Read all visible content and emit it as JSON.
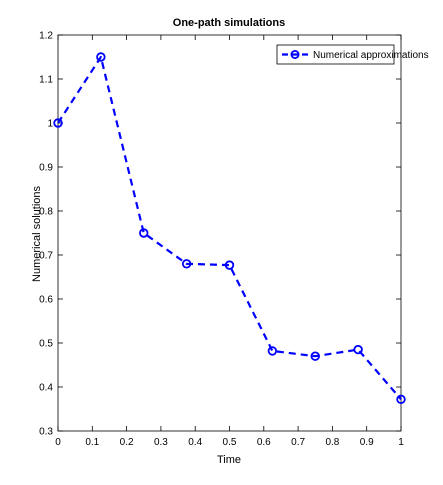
{
  "chart_data": {
    "type": "line",
    "title": "One-path simulations",
    "xlabel": "Time",
    "ylabel": "Numerical solutions",
    "xlim": [
      0,
      1
    ],
    "ylim": [
      0.3,
      1.2
    ],
    "grid": false,
    "legend_position": "top-right",
    "x_ticks": [
      0,
      0.1,
      0.2,
      0.3,
      0.4,
      0.5,
      0.6,
      0.7,
      0.8,
      0.9,
      1
    ],
    "x_tick_labels": [
      "0",
      "0.1",
      "0.2",
      "0.3",
      "0.4",
      "0.5",
      "0.6",
      "0.7",
      "0.8",
      "0.9",
      "1"
    ],
    "y_ticks": [
      0.3,
      0.4,
      0.5,
      0.6,
      0.7,
      0.8,
      0.9,
      1.0,
      1.1,
      1.2
    ],
    "y_tick_labels": [
      "0.3",
      "0.4",
      "0.5",
      "0.6",
      "0.7",
      "0.8",
      "0.9",
      "1",
      "1.1",
      "1.2"
    ],
    "series": [
      {
        "name": "Numerical approximations",
        "color": "#0000ff",
        "line_style": "dashed",
        "marker": "circle",
        "x": [
          0,
          0.125,
          0.25,
          0.375,
          0.5,
          0.625,
          0.75,
          0.875,
          1
        ],
        "y": [
          1.0,
          1.15,
          0.75,
          0.68,
          0.677,
          0.482,
          0.47,
          0.485,
          0.372
        ]
      }
    ]
  }
}
